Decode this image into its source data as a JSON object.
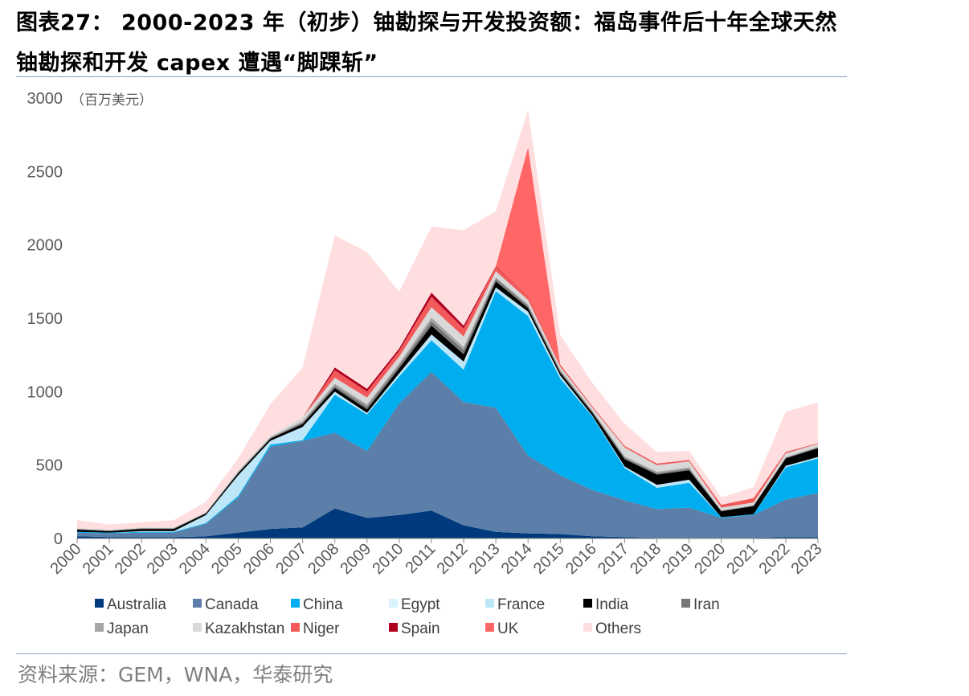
{
  "header": {
    "title": "图表27： 2000-2023 年（初步）铀勘探与开发投资额：福岛事件后十年全球天然铀勘探和开发 capex 遭遇“脚踝斩”"
  },
  "footer": {
    "source": "资料来源：GEM，WNA，华泰研究"
  },
  "chart_data": {
    "type": "area",
    "stacked": true,
    "unit_label": "（百万美元）",
    "ylim": [
      0,
      3000
    ],
    "y_ticks": [
      0,
      500,
      1000,
      1500,
      2000,
      2500,
      3000
    ],
    "x": [
      "2000",
      "2001",
      "2002",
      "2003",
      "2004",
      "2005",
      "2006",
      "2007",
      "2008",
      "2009",
      "2010",
      "2011",
      "2012",
      "2013",
      "2014",
      "2015",
      "2016",
      "2017",
      "2018",
      "2019",
      "2020",
      "2021",
      "2022",
      "2023"
    ],
    "legend_position": "bottom",
    "series": [
      {
        "name": "Australia",
        "color": "#003a7d",
        "values": [
          15,
          10,
          10,
          10,
          15,
          40,
          65,
          75,
          205,
          140,
          160,
          190,
          90,
          45,
          35,
          30,
          15,
          10,
          5,
          5,
          5,
          5,
          10,
          10
        ]
      },
      {
        "name": "Canada",
        "color": "#5b7fa8",
        "values": [
          25,
          25,
          30,
          30,
          85,
          240,
          560,
          590,
          515,
          455,
          760,
          945,
          840,
          845,
          530,
          400,
          315,
          250,
          195,
          205,
          135,
          155,
          255,
          300
        ]
      },
      {
        "name": "China",
        "color": "#00aeef",
        "values": [
          5,
          5,
          5,
          5,
          5,
          10,
          15,
          5,
          260,
          250,
          185,
          215,
          220,
          795,
          950,
          660,
          500,
          220,
          145,
          170,
          5,
          5,
          220,
          235
        ]
      },
      {
        "name": "Egypt",
        "color": "#d9f3fc",
        "values": [
          0,
          0,
          0,
          0,
          0,
          0,
          0,
          0,
          0,
          0,
          0,
          0,
          0,
          0,
          0,
          0,
          0,
          0,
          0,
          0,
          0,
          0,
          0,
          0
        ]
      },
      {
        "name": "France",
        "color": "#bde7f8",
        "values": [
          0,
          0,
          5,
          5,
          55,
          140,
          25,
          90,
          20,
          10,
          20,
          40,
          55,
          25,
          30,
          20,
          5,
          10,
          20,
          20,
          0,
          0,
          10,
          10
        ]
      },
      {
        "name": "India",
        "color": "#000000",
        "values": [
          15,
          10,
          15,
          15,
          10,
          15,
          15,
          20,
          25,
          25,
          35,
          60,
          50,
          40,
          25,
          20,
          20,
          50,
          70,
          65,
          40,
          55,
          50,
          60
        ]
      },
      {
        "name": "Iran",
        "color": "#767676",
        "values": [
          5,
          5,
          5,
          5,
          5,
          5,
          5,
          10,
          15,
          20,
          20,
          30,
          30,
          20,
          15,
          10,
          10,
          10,
          10,
          10,
          5,
          5,
          5,
          5
        ]
      },
      {
        "name": "Japan",
        "color": "#a6a6a6",
        "values": [
          0,
          0,
          0,
          0,
          0,
          5,
          5,
          10,
          15,
          15,
          15,
          25,
          20,
          10,
          10,
          10,
          5,
          10,
          10,
          10,
          0,
          0,
          5,
          5
        ]
      },
      {
        "name": "Kazakhstan",
        "color": "#d9d9d9",
        "values": [
          5,
          5,
          5,
          5,
          5,
          10,
          10,
          25,
          40,
          45,
          45,
          70,
          70,
          40,
          30,
          20,
          20,
          60,
          45,
          40,
          20,
          20,
          25,
          20
        ]
      },
      {
        "name": "Niger",
        "color": "#f25a5a",
        "values": [
          0,
          0,
          0,
          0,
          0,
          0,
          0,
          0,
          50,
          40,
          40,
          70,
          55,
          30,
          30,
          15,
          10,
          10,
          10,
          10,
          20,
          30,
          10,
          5
        ]
      },
      {
        "name": "Spain",
        "color": "#b00020",
        "values": [
          0,
          0,
          0,
          0,
          0,
          0,
          0,
          0,
          20,
          20,
          15,
          30,
          20,
          5,
          0,
          0,
          0,
          0,
          0,
          0,
          0,
          0,
          0,
          0
        ]
      },
      {
        "name": "UK",
        "color": "#ff6666",
        "values": [
          0,
          0,
          0,
          0,
          0,
          0,
          0,
          0,
          0,
          0,
          0,
          0,
          0,
          0,
          1010,
          0,
          0,
          0,
          0,
          0,
          0,
          0,
          0,
          0
        ]
      },
      {
        "name": "Others",
        "color": "#ffdedf",
        "values": [
          55,
          35,
          35,
          50,
          70,
          80,
          215,
          340,
          900,
          930,
          385,
          450,
          650,
          375,
          255,
          200,
          160,
          150,
          80,
          60,
          50,
          75,
          275,
          275
        ]
      }
    ]
  }
}
